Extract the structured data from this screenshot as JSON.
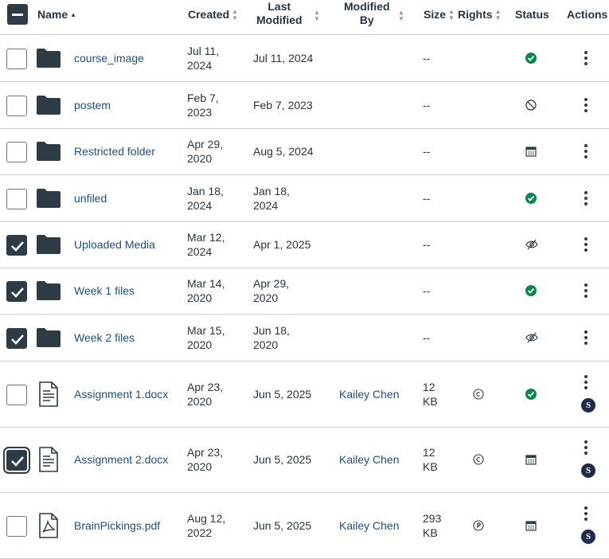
{
  "header": {
    "name": "Name",
    "created": "Created",
    "last_modified_1": "Last",
    "last_modified_2": "Modified",
    "modified_by_1": "Modified",
    "modified_by_2": "By",
    "size": "Size",
    "rights": "Rights",
    "status": "Status",
    "actions": "Actions"
  },
  "rows": [
    {
      "name": "course_image",
      "type": "folder",
      "created_1": "Jul 11,",
      "created_2": "2024",
      "modified_1": "Jul 11, 2024",
      "modified_2": "",
      "modified_by": "",
      "size_1": "--",
      "size_2": "",
      "rights": "",
      "status": "published",
      "checked": false
    },
    {
      "name": "postem",
      "type": "folder",
      "created_1": "Feb 7,",
      "created_2": "2023",
      "modified_1": "Feb 7, 2023",
      "modified_2": "",
      "modified_by": "",
      "size_1": "--",
      "size_2": "",
      "rights": "",
      "status": "unpublished",
      "checked": false
    },
    {
      "name": "Restricted folder",
      "type": "folder",
      "created_1": "Apr 29,",
      "created_2": "2020",
      "modified_1": "Aug 5, 2024",
      "modified_2": "",
      "modified_by": "",
      "size_1": "--",
      "size_2": "",
      "rights": "",
      "status": "scheduled",
      "checked": false
    },
    {
      "name": "unfiled",
      "type": "folder",
      "created_1": "Jan 18,",
      "created_2": "2024",
      "modified_1": "Jan 18,",
      "modified_2": "2024",
      "modified_by": "",
      "size_1": "--",
      "size_2": "",
      "rights": "",
      "status": "published",
      "checked": false
    },
    {
      "name": "Uploaded Media",
      "type": "folder",
      "created_1": "Mar 12,",
      "created_2": "2024",
      "modified_1": "Apr 1, 2025",
      "modified_2": "",
      "modified_by": "",
      "size_1": "--",
      "size_2": "",
      "rights": "",
      "status": "hidden",
      "checked": true
    },
    {
      "name": "Week 1 files",
      "type": "folder",
      "created_1": "Mar 14,",
      "created_2": "2020",
      "modified_1": "Apr 29,",
      "modified_2": "2020",
      "modified_by": "",
      "size_1": "--",
      "size_2": "",
      "rights": "",
      "status": "published",
      "checked": true
    },
    {
      "name": "Week 2 files",
      "type": "folder",
      "created_1": "Mar 15,",
      "created_2": "2020",
      "modified_1": "Jun 18,",
      "modified_2": "2020",
      "modified_by": "",
      "size_1": "--",
      "size_2": "",
      "rights": "",
      "status": "hidden",
      "checked": true
    },
    {
      "name": "Assignment 1.docx",
      "type": "doc",
      "created_1": "Apr 23,",
      "created_2": "2020",
      "modified_1": "Jun 5, 2025",
      "modified_2": "",
      "modified_by": "Kailey Chen",
      "size_1": "12",
      "size_2": "KB",
      "rights": "copyright",
      "status": "published",
      "checked": false,
      "avatar": "S"
    },
    {
      "name": "Assignment 2.docx",
      "type": "doc",
      "created_1": "Apr 23,",
      "created_2": "2020",
      "modified_1": "Jun 5, 2025",
      "modified_2": "",
      "modified_by": "Kailey Chen",
      "size_1": "12",
      "size_2": "KB",
      "rights": "copyright",
      "status": "scheduled",
      "checked": true,
      "focus": true,
      "avatar": "S"
    },
    {
      "name": "BrainPickings.pdf",
      "type": "pdf",
      "created_1": "Aug 12,",
      "created_2": "2022",
      "modified_1": "Jun 5, 2025",
      "modified_2": "",
      "modified_by": "Kailey Chen",
      "size_1": "293",
      "size_2": "KB",
      "rights": "public-domain",
      "status": "scheduled",
      "checked": false,
      "avatar": "S"
    }
  ]
}
